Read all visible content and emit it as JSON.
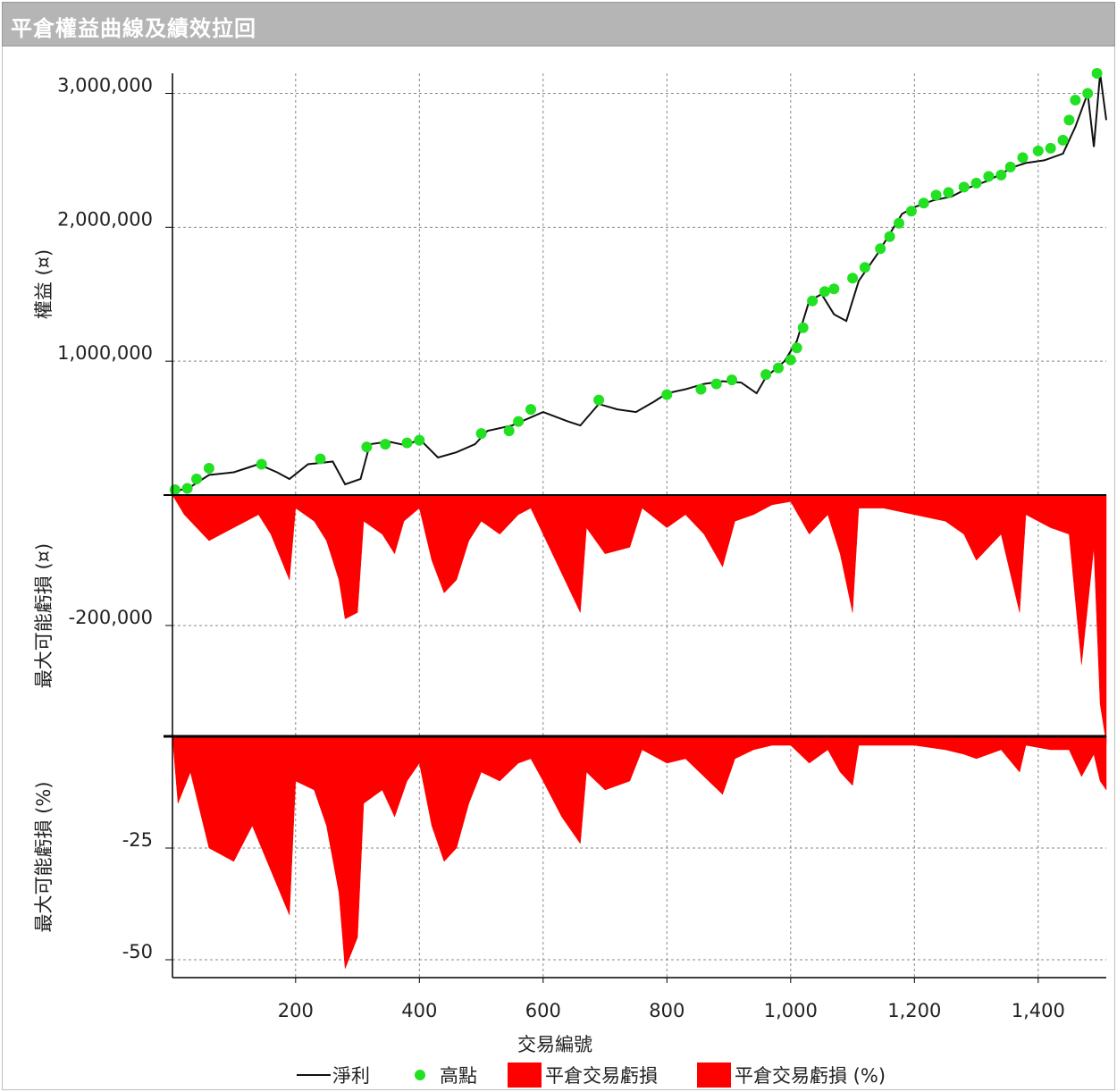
{
  "title": "平倉權益曲線及績效拉回",
  "colors": {
    "net_line": "#111111",
    "high_point": "#22e022",
    "drawdown_fill": "#ff0000",
    "grid": "#888888"
  },
  "chart_data": [
    {
      "type": "line",
      "panel": "equity",
      "ylabel": "權益 (¤)",
      "yticks": [
        1000000,
        2000000,
        3000000
      ],
      "ytick_labels": [
        "1,000,000",
        "2,000,000",
        "3,000,000"
      ],
      "ylim": [
        0,
        3150000
      ],
      "xlim": [
        1,
        1510
      ],
      "series": [
        {
          "name": "淨利",
          "points": [
            [
              1,
              20000
            ],
            [
              30,
              60000
            ],
            [
              60,
              150000
            ],
            [
              100,
              170000
            ],
            [
              140,
              230000
            ],
            [
              170,
              170000
            ],
            [
              190,
              120000
            ],
            [
              220,
              230000
            ],
            [
              260,
              250000
            ],
            [
              280,
              80000
            ],
            [
              305,
              120000
            ],
            [
              320,
              380000
            ],
            [
              350,
              400000
            ],
            [
              380,
              370000
            ],
            [
              400,
              420000
            ],
            [
              430,
              280000
            ],
            [
              460,
              320000
            ],
            [
              490,
              380000
            ],
            [
              510,
              480000
            ],
            [
              550,
              520000
            ],
            [
              580,
              580000
            ],
            [
              600,
              620000
            ],
            [
              640,
              550000
            ],
            [
              660,
              520000
            ],
            [
              690,
              680000
            ],
            [
              720,
              640000
            ],
            [
              750,
              620000
            ],
            [
              780,
              700000
            ],
            [
              800,
              760000
            ],
            [
              830,
              790000
            ],
            [
              860,
              830000
            ],
            [
              890,
              850000
            ],
            [
              920,
              840000
            ],
            [
              945,
              760000
            ],
            [
              960,
              880000
            ],
            [
              990,
              1000000
            ],
            [
              1010,
              1150000
            ],
            [
              1030,
              1450000
            ],
            [
              1050,
              1500000
            ],
            [
              1070,
              1350000
            ],
            [
              1090,
              1300000
            ],
            [
              1110,
              1600000
            ],
            [
              1140,
              1800000
            ],
            [
              1160,
              1950000
            ],
            [
              1180,
              2100000
            ],
            [
              1200,
              2150000
            ],
            [
              1230,
              2200000
            ],
            [
              1260,
              2230000
            ],
            [
              1290,
              2300000
            ],
            [
              1320,
              2350000
            ],
            [
              1360,
              2450000
            ],
            [
              1380,
              2480000
            ],
            [
              1410,
              2500000
            ],
            [
              1440,
              2550000
            ],
            [
              1460,
              2750000
            ],
            [
              1480,
              3000000
            ],
            [
              1490,
              2600000
            ],
            [
              1500,
              3150000
            ],
            [
              1510,
              2800000
            ]
          ]
        },
        {
          "name": "高點",
          "points": [
            [
              5,
              40000
            ],
            [
              25,
              50000
            ],
            [
              40,
              120000
            ],
            [
              60,
              200000
            ],
            [
              145,
              230000
            ],
            [
              240,
              270000
            ],
            [
              315,
              360000
            ],
            [
              345,
              380000
            ],
            [
              380,
              390000
            ],
            [
              400,
              410000
            ],
            [
              500,
              460000
            ],
            [
              545,
              480000
            ],
            [
              560,
              550000
            ],
            [
              580,
              640000
            ],
            [
              690,
              710000
            ],
            [
              800,
              750000
            ],
            [
              855,
              790000
            ],
            [
              880,
              830000
            ],
            [
              905,
              860000
            ],
            [
              960,
              900000
            ],
            [
              980,
              950000
            ],
            [
              1000,
              1010000
            ],
            [
              1010,
              1100000
            ],
            [
              1020,
              1250000
            ],
            [
              1035,
              1450000
            ],
            [
              1055,
              1520000
            ],
            [
              1070,
              1540000
            ],
            [
              1100,
              1620000
            ],
            [
              1120,
              1700000
            ],
            [
              1145,
              1840000
            ],
            [
              1160,
              1930000
            ],
            [
              1175,
              2030000
            ],
            [
              1195,
              2120000
            ],
            [
              1215,
              2180000
            ],
            [
              1235,
              2240000
            ],
            [
              1255,
              2260000
            ],
            [
              1280,
              2300000
            ],
            [
              1300,
              2330000
            ],
            [
              1320,
              2380000
            ],
            [
              1340,
              2390000
            ],
            [
              1355,
              2450000
            ],
            [
              1375,
              2520000
            ],
            [
              1400,
              2570000
            ],
            [
              1420,
              2590000
            ],
            [
              1440,
              2650000
            ],
            [
              1450,
              2800000
            ],
            [
              1460,
              2950000
            ],
            [
              1480,
              3000000
            ],
            [
              1495,
              3150000
            ]
          ]
        }
      ]
    },
    {
      "type": "area",
      "panel": "drawdown_abs",
      "ylabel": "最大可能虧損 (¤)",
      "yticks": [
        -200000
      ],
      "ytick_labels": [
        "-200,000"
      ],
      "ylim": [
        -370000,
        0
      ],
      "xlim": [
        1,
        1510
      ],
      "series": [
        {
          "name": "平倉交易虧損",
          "points": [
            [
              1,
              0
            ],
            [
              20,
              -30000
            ],
            [
              60,
              -70000
            ],
            [
              90,
              -55000
            ],
            [
              140,
              -30000
            ],
            [
              160,
              -60000
            ],
            [
              190,
              -130000
            ],
            [
              200,
              -20000
            ],
            [
              230,
              -40000
            ],
            [
              250,
              -70000
            ],
            [
              270,
              -130000
            ],
            [
              280,
              -190000
            ],
            [
              300,
              -180000
            ],
            [
              310,
              -40000
            ],
            [
              340,
              -60000
            ],
            [
              360,
              -90000
            ],
            [
              375,
              -40000
            ],
            [
              400,
              -20000
            ],
            [
              420,
              -100000
            ],
            [
              440,
              -150000
            ],
            [
              460,
              -130000
            ],
            [
              480,
              -70000
            ],
            [
              500,
              -40000
            ],
            [
              530,
              -60000
            ],
            [
              560,
              -30000
            ],
            [
              580,
              -20000
            ],
            [
              600,
              -60000
            ],
            [
              630,
              -120000
            ],
            [
              660,
              -180000
            ],
            [
              670,
              -50000
            ],
            [
              700,
              -90000
            ],
            [
              740,
              -80000
            ],
            [
              760,
              -20000
            ],
            [
              800,
              -50000
            ],
            [
              830,
              -30000
            ],
            [
              860,
              -60000
            ],
            [
              890,
              -110000
            ],
            [
              910,
              -40000
            ],
            [
              940,
              -30000
            ],
            [
              970,
              -15000
            ],
            [
              1000,
              -10000
            ],
            [
              1030,
              -60000
            ],
            [
              1060,
              -30000
            ],
            [
              1080,
              -90000
            ],
            [
              1100,
              -180000
            ],
            [
              1110,
              -20000
            ],
            [
              1150,
              -20000
            ],
            [
              1200,
              -30000
            ],
            [
              1250,
              -40000
            ],
            [
              1280,
              -60000
            ],
            [
              1300,
              -100000
            ],
            [
              1340,
              -60000
            ],
            [
              1370,
              -180000
            ],
            [
              1380,
              -30000
            ],
            [
              1420,
              -50000
            ],
            [
              1450,
              -60000
            ],
            [
              1470,
              -260000
            ],
            [
              1490,
              -80000
            ],
            [
              1500,
              -320000
            ],
            [
              1510,
              -380000
            ]
          ]
        }
      ]
    },
    {
      "type": "area",
      "panel": "drawdown_pct",
      "ylabel": "最大可能虧損 (%)",
      "xlabel": "交易編號",
      "yticks": [
        -50,
        -25
      ],
      "ytick_labels": [
        "-50",
        "-25"
      ],
      "ylim": [
        -54,
        0
      ],
      "xlim": [
        1,
        1510
      ],
      "xticks": [
        200,
        400,
        600,
        800,
        1000,
        1200,
        1400
      ],
      "xtick_labels": [
        "200",
        "400",
        "600",
        "800",
        "1,000",
        "1,200",
        "1,400"
      ],
      "series": [
        {
          "name": "平倉交易虧損 (%)",
          "points": [
            [
              1,
              0
            ],
            [
              10,
              -15
            ],
            [
              30,
              -8
            ],
            [
              60,
              -25
            ],
            [
              100,
              -28
            ],
            [
              130,
              -20
            ],
            [
              160,
              -30
            ],
            [
              190,
              -40
            ],
            [
              200,
              -10
            ],
            [
              230,
              -12
            ],
            [
              250,
              -20
            ],
            [
              270,
              -35
            ],
            [
              280,
              -52
            ],
            [
              300,
              -45
            ],
            [
              310,
              -15
            ],
            [
              340,
              -12
            ],
            [
              360,
              -18
            ],
            [
              380,
              -10
            ],
            [
              400,
              -6
            ],
            [
              420,
              -20
            ],
            [
              440,
              -28
            ],
            [
              460,
              -25
            ],
            [
              480,
              -15
            ],
            [
              500,
              -8
            ],
            [
              530,
              -10
            ],
            [
              560,
              -6
            ],
            [
              580,
              -5
            ],
            [
              600,
              -10
            ],
            [
              630,
              -18
            ],
            [
              660,
              -24
            ],
            [
              670,
              -8
            ],
            [
              700,
              -12
            ],
            [
              740,
              -10
            ],
            [
              760,
              -3
            ],
            [
              800,
              -6
            ],
            [
              830,
              -5
            ],
            [
              860,
              -9
            ],
            [
              890,
              -13
            ],
            [
              910,
              -5
            ],
            [
              940,
              -3
            ],
            [
              970,
              -2
            ],
            [
              1000,
              -2
            ],
            [
              1030,
              -6
            ],
            [
              1060,
              -3
            ],
            [
              1080,
              -8
            ],
            [
              1100,
              -11
            ],
            [
              1110,
              -2
            ],
            [
              1150,
              -2
            ],
            [
              1200,
              -2
            ],
            [
              1250,
              -3
            ],
            [
              1280,
              -4
            ],
            [
              1300,
              -5
            ],
            [
              1340,
              -3
            ],
            [
              1370,
              -8
            ],
            [
              1380,
              -2
            ],
            [
              1420,
              -3
            ],
            [
              1450,
              -3
            ],
            [
              1470,
              -9
            ],
            [
              1490,
              -4
            ],
            [
              1500,
              -10
            ],
            [
              1510,
              -12
            ]
          ]
        }
      ]
    }
  ],
  "legend": [
    {
      "label": "淨利",
      "kind": "line"
    },
    {
      "label": "高點",
      "kind": "dot"
    },
    {
      "label": "平倉交易虧損",
      "kind": "box"
    },
    {
      "label": "平倉交易虧損 (%)",
      "kind": "box"
    }
  ]
}
